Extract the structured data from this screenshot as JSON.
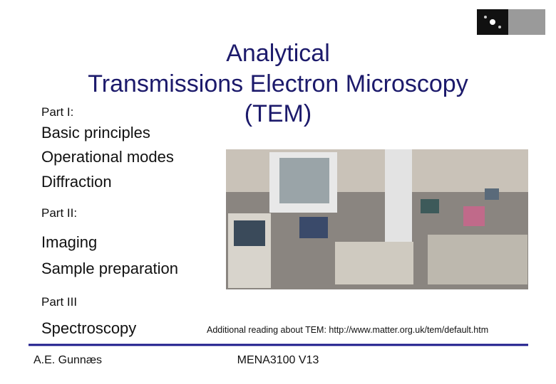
{
  "header": {
    "title": [
      "Analytical",
      "Transmissions Electron Microscopy",
      "(TEM)"
    ]
  },
  "sections": [
    {
      "heading": "Part I:",
      "items": [
        "Basic principles",
        "Operational modes",
        "Diffraction"
      ]
    },
    {
      "heading": "Part II:",
      "items": [
        "Imaging",
        "Sample preparation"
      ]
    },
    {
      "heading": "Part III",
      "items": [
        "Spectroscopy"
      ]
    }
  ],
  "note": "Additional reading about TEM: http://www.matter.org.uk/tem/default.htm",
  "footer": {
    "author": "A.E. Gunnæs",
    "course": "MENA3100 V13"
  }
}
